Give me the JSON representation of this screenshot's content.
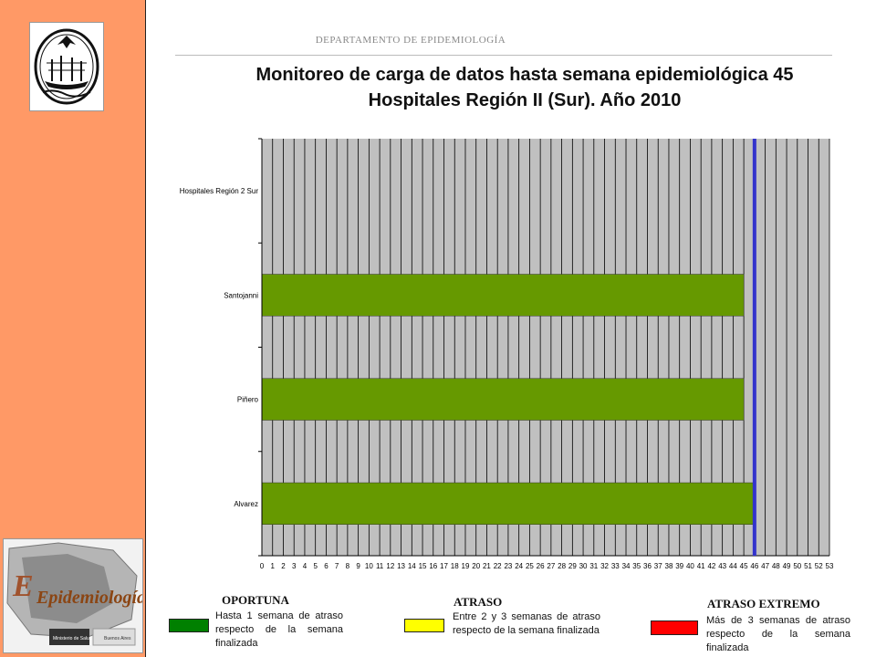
{
  "header": {
    "department": "DEPARTAMENTO DE EPIDEMIOLOGÍA",
    "title_line1": "Monitoreo de carga de datos hasta semana epidemiológica 45",
    "title_line2": "Hospitales Región II (Sur). Año 2010"
  },
  "logos": {
    "seal_icon": "city-seal-icon",
    "epidemiologia_text": "Epidemiología",
    "ministerio_text": "Ministerio de Salud",
    "buenos_aires_text": "Buenos Aires"
  },
  "chart_data": {
    "type": "bar",
    "orientation": "horizontal",
    "title": "",
    "categories": [
      "Hospitales Región 2 Sur",
      "Santojanni",
      "Piñero",
      "Alvarez"
    ],
    "values": [
      0,
      45,
      45,
      46
    ],
    "xlim": [
      0,
      53
    ],
    "xticks": [
      "0",
      "1",
      "2",
      "3",
      "4",
      "5",
      "6",
      "7",
      "8",
      "9",
      "10",
      "11",
      "12",
      "13",
      "14",
      "15",
      "16",
      "17",
      "18",
      "19",
      "20",
      "21",
      "22",
      "23",
      "24",
      "25",
      "26",
      "27",
      "28",
      "29",
      "30",
      "31",
      "32",
      "33",
      "34",
      "35",
      "36",
      "37",
      "38",
      "39",
      "40",
      "41",
      "42",
      "43",
      "44",
      "45",
      "46",
      "47",
      "48",
      "49",
      "50",
      "51",
      "52",
      "53"
    ],
    "reference_line": 46,
    "grid": true,
    "colors": {
      "bar": "#669900",
      "plot_bg": "#c0c0c0",
      "reference_line": "#3333cc",
      "grid": "#000000"
    }
  },
  "legend": [
    {
      "title": "OPORTUNA",
      "text": "Hasta 1 semana de atraso respecto de la semana finalizada",
      "color": "#008000"
    },
    {
      "title": "ATRASO",
      "text": "Entre 2 y 3 semanas de atraso respecto de la semana finalizada",
      "color": "#ffff00"
    },
    {
      "title": "ATRASO EXTREMO",
      "text": "Más de 3 semanas de atraso respecto de la semana finalizada",
      "color": "#ff0000"
    }
  ]
}
